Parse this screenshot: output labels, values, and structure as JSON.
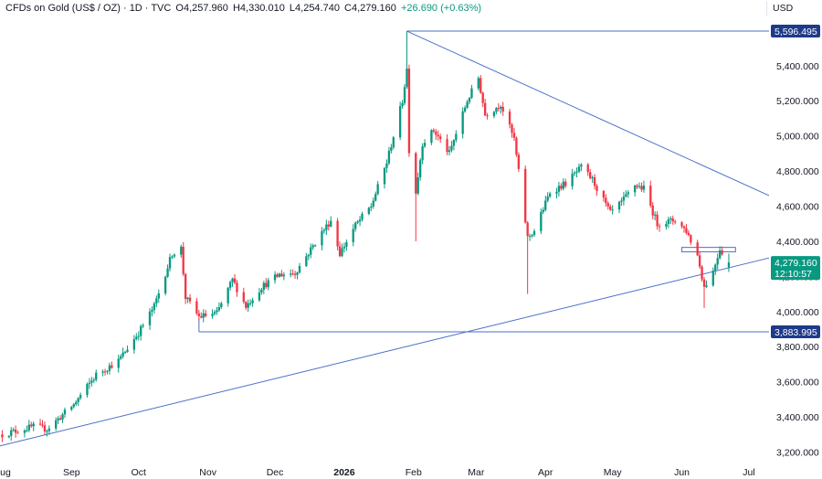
{
  "header": {
    "instrument": "CFDs on Gold (US$ / OZ) · 1D · TVC",
    "open": "O4,257.960",
    "high": "H4,330.010",
    "low": "L4,254.740",
    "close": "C4,279.160",
    "change": "+26.690 (+0.63%)"
  },
  "currency": "USD",
  "colors": {
    "up": "#089981",
    "down": "#f23645",
    "line": "#2962ff",
    "line_soft": "#4a6fc7",
    "price_tag": "#089981",
    "level_tag": "#1e3a8a"
  },
  "price_label": {
    "value": "4,279.160",
    "countdown": "12:10:57"
  },
  "chart_data": {
    "type": "candlestick",
    "title": "",
    "y_axis": {
      "ticks": [
        "3,200.000",
        "3,400.000",
        "3,600.000",
        "3,800.000",
        "4,000.000",
        "4,200.000",
        "4,400.000",
        "4,600.000",
        "4,800.000",
        "5,000.000",
        "5,200.000",
        "5,400.000"
      ],
      "tick_values": [
        3200,
        3400,
        3600,
        3800,
        4000,
        4200,
        4400,
        4600,
        4800,
        5000,
        5200,
        5400
      ],
      "ylim": [
        3140,
        5680
      ]
    },
    "x_axis": {
      "ticks": [
        "Aug",
        "Sep",
        "Oct",
        "Nov",
        "Dec",
        "2026",
        "Feb",
        "Mar",
        "Apr",
        "May",
        "Jun",
        "Jul"
      ],
      "bold_ticks": [
        "2026"
      ],
      "tick_dates": [
        "2025-08-01",
        "2025-09-01",
        "2025-10-01",
        "2025-11-01",
        "2025-12-01",
        "2026-01-01",
        "2026-02-01",
        "2026-03-01",
        "2026-04-01",
        "2026-05-01",
        "2026-06-01",
        "2026-07-01"
      ],
      "range": [
        "2025-07-31",
        "2026-07-10"
      ]
    },
    "levels": [
      {
        "label": "5,596.495",
        "value": 5596.495,
        "from": "2026-01-29"
      },
      {
        "label": "3,883.995",
        "value": 3883.995,
        "from": "2025-10-28"
      }
    ],
    "trendlines": [
      {
        "name": "",
        "from": {
          "date": "2026-01-29",
          "value": 5596.495
        },
        "to": {
          "date": "2026-07-10",
          "value": 4660
        }
      },
      {
        "name": "",
        "from": {
          "date": "2025-07-31",
          "value": 3235
        },
        "to": {
          "date": "2026-07-10",
          "value": 4305
        }
      }
    ],
    "zone": {
      "from": "2026-06-01",
      "to": "2026-06-25",
      "high": 4365,
      "low": 4340
    },
    "anchors": [
      [
        "2025-08-01",
        3300
      ],
      [
        "2025-08-15",
        3345
      ],
      [
        "2025-08-21",
        3330
      ],
      [
        "2025-09-02",
        3470
      ],
      [
        "2025-09-12",
        3640
      ],
      [
        "2025-09-22",
        3720
      ],
      [
        "2025-10-01",
        3880
      ],
      [
        "2025-10-08",
        4030
      ],
      [
        "2025-10-16",
        4330
      ],
      [
        "2025-10-20",
        4360
      ],
      [
        "2025-10-22",
        4080
      ],
      [
        "2025-10-28",
        3970
      ],
      [
        "2025-11-05",
        3990
      ],
      [
        "2025-11-12",
        4180
      ],
      [
        "2025-11-18",
        4030
      ],
      [
        "2025-11-25",
        4140
      ],
      [
        "2025-12-03",
        4210
      ],
      [
        "2025-12-10",
        4220
      ],
      [
        "2025-12-22",
        4450
      ],
      [
        "2025-12-26",
        4520
      ],
      [
        "2025-12-30",
        4330
      ],
      [
        "2026-01-06",
        4490
      ],
      [
        "2026-01-13",
        4600
      ],
      [
        "2026-01-20",
        4850
      ],
      [
        "2026-01-27",
        5200
      ],
      [
        "2026-01-29",
        5380
      ],
      [
        "2026-01-30",
        4920
      ],
      [
        "2026-02-02",
        4680
      ],
      [
        "2026-02-05",
        4960
      ],
      [
        "2026-02-10",
        5030
      ],
      [
        "2026-02-17",
        4900
      ],
      [
        "2026-02-25",
        5200
      ],
      [
        "2026-03-02",
        5330
      ],
      [
        "2026-03-05",
        5120
      ],
      [
        "2026-03-12",
        5180
      ],
      [
        "2026-03-18",
        4980
      ],
      [
        "2026-03-24",
        4420
      ],
      [
        "2026-03-27",
        4460
      ],
      [
        "2026-04-03",
        4680
      ],
      [
        "2026-04-10",
        4730
      ],
      [
        "2026-04-17",
        4820
      ],
      [
        "2026-04-22",
        4750
      ],
      [
        "2026-04-30",
        4560
      ],
      [
        "2026-05-05",
        4620
      ],
      [
        "2026-05-11",
        4720
      ],
      [
        "2026-05-15",
        4700
      ],
      [
        "2026-05-21",
        4500
      ],
      [
        "2026-05-29",
        4520
      ],
      [
        "2026-06-03",
        4460
      ],
      [
        "2026-06-08",
        4320
      ],
      [
        "2026-06-11",
        4140
      ],
      [
        "2026-06-15",
        4230
      ],
      [
        "2026-06-18",
        4360
      ],
      [
        "2026-06-22",
        4279.16
      ]
    ]
  }
}
